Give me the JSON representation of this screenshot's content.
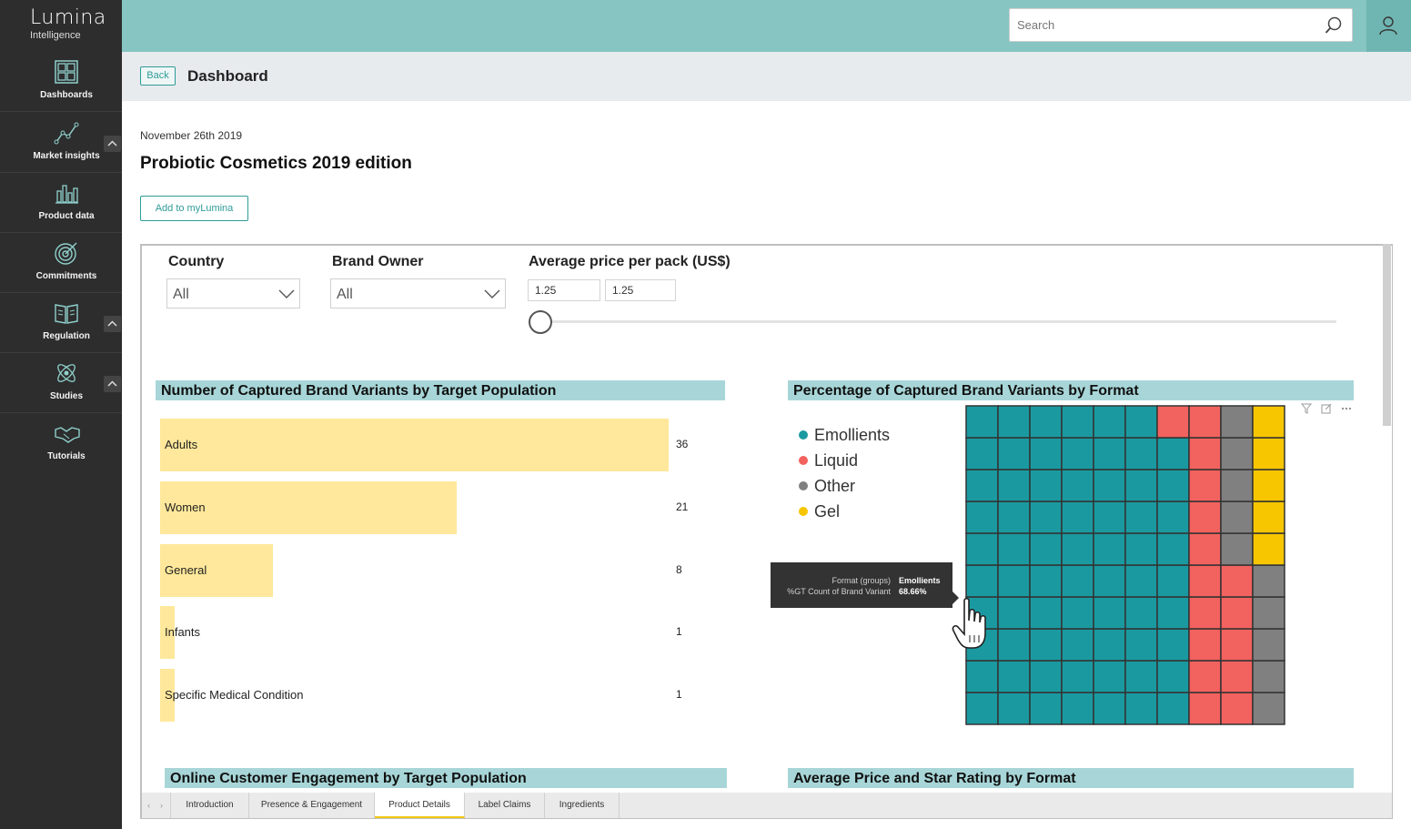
{
  "app": {
    "logo_main": "Lumina",
    "logo_sub": "Intelligence"
  },
  "sidebar": {
    "items": [
      {
        "label": "Dashboards",
        "icon": "dashboard-grid-icon"
      },
      {
        "label": "Market insights",
        "icon": "line-chart-icon"
      },
      {
        "label": "Product data",
        "icon": "bar-chart-icon"
      },
      {
        "label": "Commitments",
        "icon": "target-icon"
      },
      {
        "label": "Regulation",
        "icon": "book-icon"
      },
      {
        "label": "Studies",
        "icon": "atom-icon"
      },
      {
        "label": "Tutorials",
        "icon": "handshake-icon"
      }
    ]
  },
  "search": {
    "placeholder": "Search"
  },
  "header": {
    "back_label": "Back",
    "page_title": "Dashboard"
  },
  "report": {
    "date": "November 26th 2019",
    "title": "Probiotic Cosmetics 2019 edition",
    "add_button": "Add to myLumina"
  },
  "filters": {
    "country": {
      "label": "Country",
      "value": "All"
    },
    "brand_owner": {
      "label": "Brand Owner",
      "value": "All"
    },
    "price": {
      "label": "Average price per pack (US$)",
      "min": "1.25",
      "max": "1.25"
    }
  },
  "visuals": {
    "v1_title": "Number of Captured Brand Variants by Target Population",
    "v2_title": "Percentage of Captured Brand Variants by Format",
    "v3_title": "Online Customer Engagement by Target Population",
    "v4_title": "Average Price and Star Rating by Format"
  },
  "chart_data": [
    {
      "type": "bar",
      "title": "Number of Captured Brand Variants by Target Population",
      "categories": [
        "Adults",
        "Women",
        "General",
        "Infants",
        "Specific Medical Condition"
      ],
      "values": [
        36,
        21,
        8,
        1,
        1
      ],
      "orientation": "horizontal"
    },
    {
      "type": "waffle",
      "title": "Percentage of Captured Brand Variants by Format",
      "legend": [
        {
          "name": "Emollients",
          "color": "#1a9aa0"
        },
        {
          "name": "Liquid",
          "color": "#f2625e"
        },
        {
          "name": "Other",
          "color": "#808080"
        },
        {
          "name": "Gel",
          "color": "#f7c600"
        }
      ],
      "cell_counts": [
        69,
        16,
        10,
        5
      ],
      "grid": [
        10,
        10
      ]
    }
  ],
  "tooltip": {
    "k1": "Format (groups)",
    "v1": "Emollients",
    "k2": "%GT Count of Brand Variant",
    "v2": "68.66%"
  },
  "tabs": [
    "Introduction",
    "Presence & Engagement",
    "Product Details",
    "Label Claims",
    "Ingredients"
  ],
  "active_tab": "Product Details",
  "colors": {
    "teal_header": "#86c5c2",
    "accent": "#2f9c98",
    "bar_fill": "#ffe89b",
    "title_band": "#a8d6d8"
  }
}
